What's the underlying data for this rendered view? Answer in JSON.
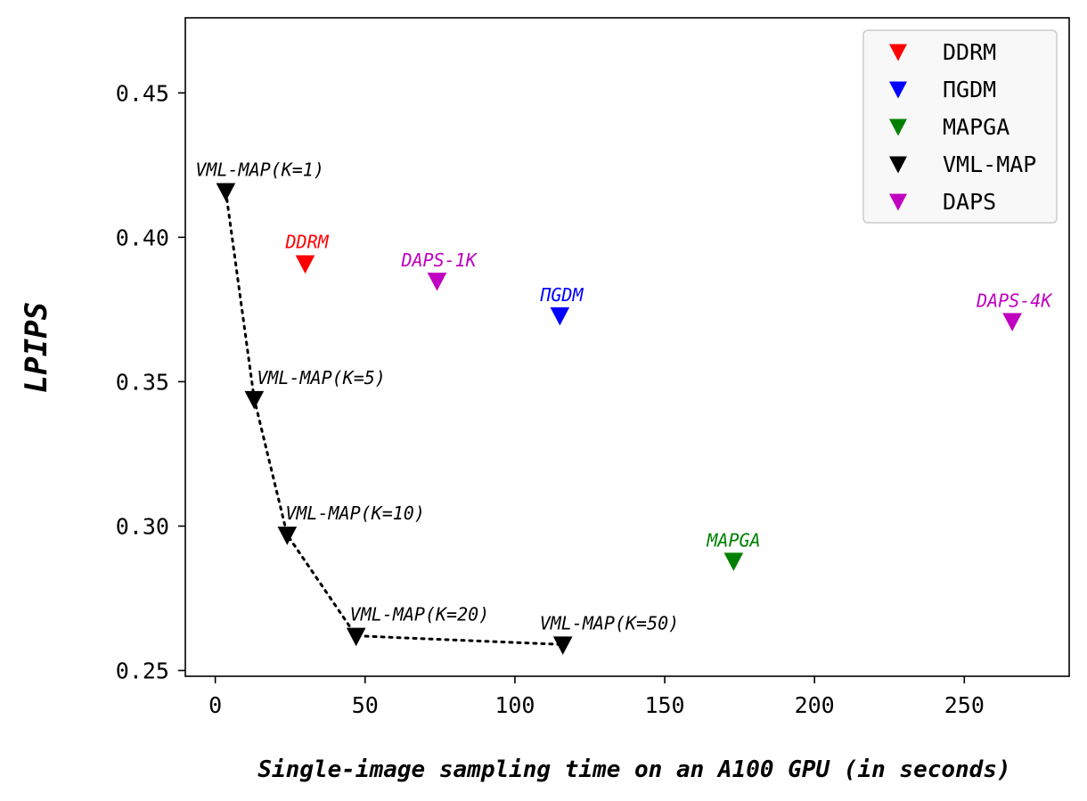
{
  "chart_data": {
    "type": "scatter",
    "title": "",
    "xlabel": "Single-image sampling time on an A100 GPU (in seconds)",
    "ylabel": "LPIPS",
    "xlim": [
      -10,
      285
    ],
    "ylim": [
      0.248,
      0.476
    ],
    "xticks": [
      0,
      50,
      100,
      150,
      200,
      250
    ],
    "xtick_labels": [
      "0",
      "50",
      "100",
      "150",
      "200",
      "250"
    ],
    "yticks": [
      0.25,
      0.3,
      0.35,
      0.4,
      0.45
    ],
    "ytick_labels": [
      "0.25",
      "0.30",
      "0.35",
      "0.40",
      "0.45"
    ],
    "grid": false,
    "legend_position": "top-right",
    "series": [
      {
        "name": "DDRM",
        "color": "#ff0000",
        "points": [
          {
            "x": 30,
            "y": 0.391,
            "label": "DDRM"
          }
        ]
      },
      {
        "name": "ΠGDM",
        "color": "#0000ff",
        "points": [
          {
            "x": 115,
            "y": 0.373,
            "label": "ΠGDM"
          }
        ]
      },
      {
        "name": "MAPGA",
        "color": "#008000",
        "points": [
          {
            "x": 173,
            "y": 0.288,
            "label": "MAPGA"
          }
        ]
      },
      {
        "name": "VML-MAP",
        "color": "#000000",
        "connected": true,
        "line_style": "dotted",
        "points": [
          {
            "x": 3.5,
            "y": 0.416,
            "label": "VML-MAP(K=1)"
          },
          {
            "x": 13,
            "y": 0.344,
            "label": "VML-MAP(K=5)"
          },
          {
            "x": 24,
            "y": 0.297,
            "label": "VML-MAP(K=10)"
          },
          {
            "x": 47,
            "y": 0.262,
            "label": "VML-MAP(K=20)"
          },
          {
            "x": 116,
            "y": 0.259,
            "label": "VML-MAP(K=50)"
          }
        ]
      },
      {
        "name": "DAPS",
        "color": "#c000c0",
        "points": [
          {
            "x": 74,
            "y": 0.385,
            "label": "DAPS-1K"
          },
          {
            "x": 266,
            "y": 0.371,
            "label": "DAPS-4K"
          }
        ]
      }
    ]
  }
}
